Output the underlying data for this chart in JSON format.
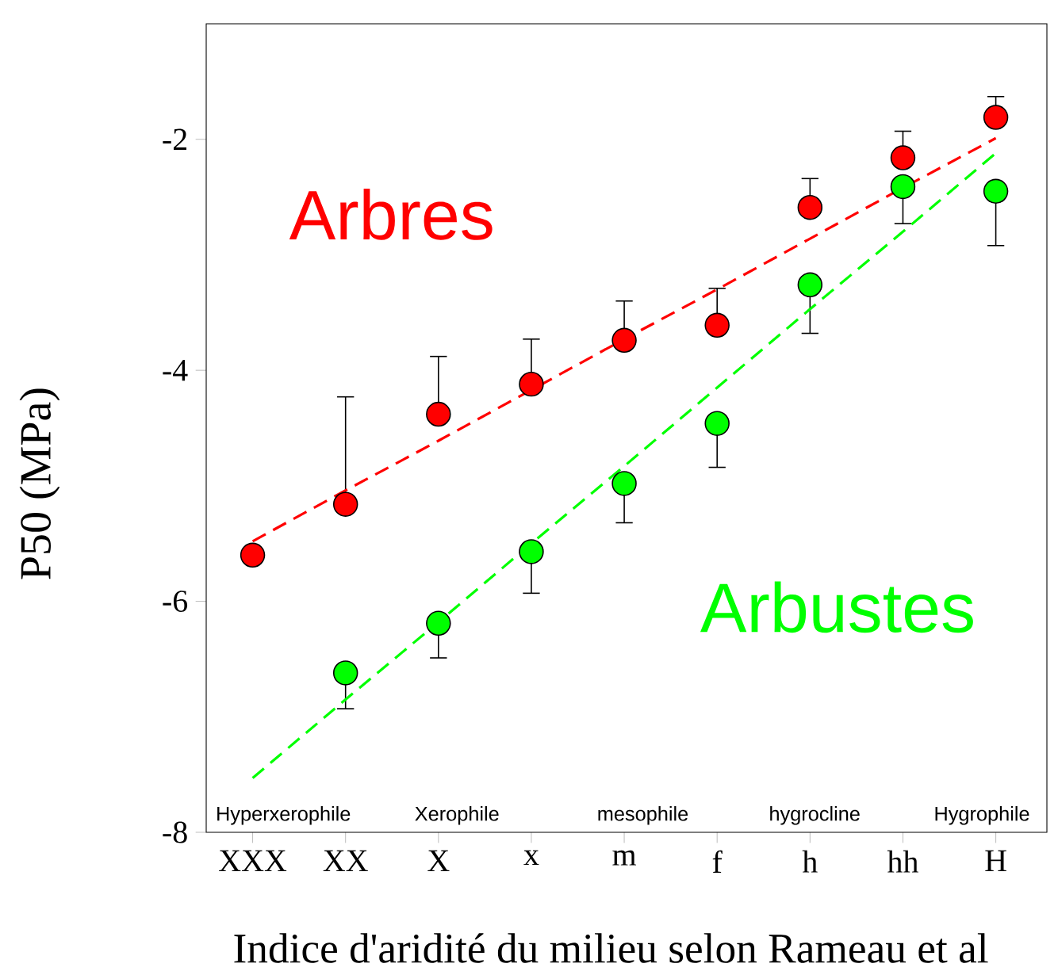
{
  "chart_data": {
    "type": "scatter",
    "ylabel": "P50 (MPa)",
    "xlabel": "Indice d'aridité du milieu selon Rameau et al",
    "categories": [
      "XXX",
      "XX",
      "X",
      "x",
      "m",
      "f",
      "h",
      "hh",
      "H"
    ],
    "ylim": [
      -8,
      -1
    ],
    "yticks": [
      -2,
      -4,
      -6,
      -8
    ],
    "annotations": [
      "Hyperxerophile",
      "Xerophile",
      "mesophile",
      "hygrocline",
      "Hygrophile"
    ],
    "series": [
      {
        "name": "Arbres",
        "color": "#ff0000",
        "marker": "circle",
        "values": [
          -5.6,
          -5.16,
          -4.38,
          -4.12,
          -3.74,
          -3.61,
          -2.59,
          -2.16,
          -1.81
        ],
        "errors": [
          null,
          [
            -5.16,
            -4.23
          ],
          [
            -4.38,
            -3.88
          ],
          [
            -4.12,
            -3.73
          ],
          [
            -3.74,
            -3.4
          ],
          [
            -3.61,
            -3.29
          ],
          [
            -2.59,
            -2.34
          ],
          [
            -2.16,
            -1.93
          ],
          [
            -1.81,
            -1.63
          ]
        ]
      },
      {
        "name": "Arbustes",
        "color": "#00ff00",
        "marker": "circle",
        "values": [
          null,
          -6.62,
          -6.19,
          -5.57,
          -4.98,
          -4.46,
          -3.26,
          -2.41,
          -2.45
        ],
        "errors": [
          null,
          [
            -6.93,
            -6.62
          ],
          [
            -6.49,
            -6.19
          ],
          [
            -5.93,
            -5.57
          ],
          [
            -5.32,
            -4.98
          ],
          [
            -4.84,
            -4.46
          ],
          [
            -3.68,
            -3.26
          ],
          [
            -2.73,
            -2.41
          ],
          [
            -2.92,
            -2.45
          ]
        ]
      },
      {
        "type": "line",
        "color": "#ff0000",
        "line_style": "dashed",
        "marker": "none",
        "values": [
          -5.48,
          -5.04,
          -4.61,
          -4.17,
          -3.73,
          -3.3,
          -2.86,
          -2.42,
          -1.99
        ]
      },
      {
        "type": "line",
        "color": "#00ff00",
        "line_style": "dashed",
        "marker": "none",
        "values": [
          -7.53,
          -6.85,
          -6.18,
          -5.5,
          -4.83,
          -4.15,
          -3.47,
          -2.8,
          -2.12
        ]
      }
    ]
  }
}
